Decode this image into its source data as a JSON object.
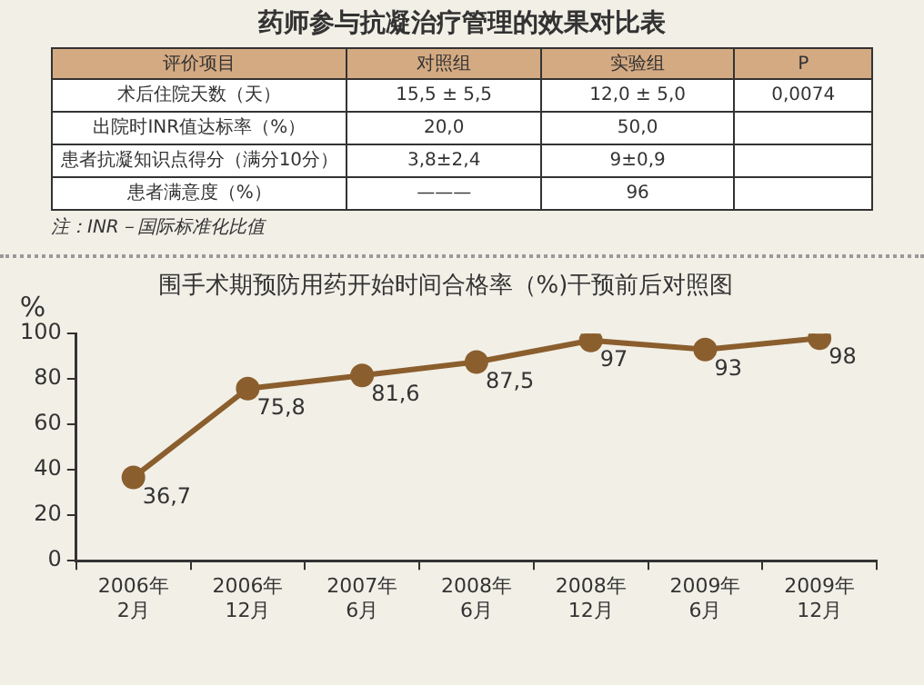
{
  "chart_data": [
    {
      "type": "other",
      "title": "药师参与抗凝治疗管理的效果对比表",
      "categories": [
        "评价项目",
        "对照组",
        "实验组",
        "P"
      ],
      "cell_labels": [
        [
          "术后住院天数（天）",
          "15,5 ± 5,5",
          "12,0 ± 5,0",
          "0,0074"
        ],
        [
          "出院时INR值达标率（%）",
          "20,0",
          "50,0",
          null
        ],
        [
          "患者抗凝知识点得分（满分10分）",
          "3,8±2,4",
          "9±0,9",
          null
        ],
        [
          "患者满意度（%）",
          "———",
          "96",
          null
        ]
      ],
      "annotations": [
        "注：INR－国际标准化比值"
      ]
    },
    {
      "type": "line",
      "title": "围手术期预防用药开始时间合格率（%)干预前后对照图",
      "ylabel": "%",
      "categories": [
        "2006年\n2月",
        "2006年\n12月",
        "2007年\n6月",
        "2008年\n6月",
        "2008年\n12月",
        "2009年\n6月",
        "2009年\n12月"
      ],
      "series": [
        {
          "color": "#8b5e2e",
          "values": [
            36.7,
            75.8,
            81.6,
            87.5,
            97,
            93,
            98
          ],
          "value_labels": [
            "36,7",
            "75,8",
            "81,6",
            "87,5",
            "97",
            "93",
            "98"
          ]
        }
      ],
      "ylim": [
        0,
        100
      ],
      "yticks": [
        0,
        20,
        40,
        60,
        80,
        100
      ],
      "grid": false,
      "legend": false,
      "marker": "circle",
      "line_style": "solid"
    }
  ]
}
